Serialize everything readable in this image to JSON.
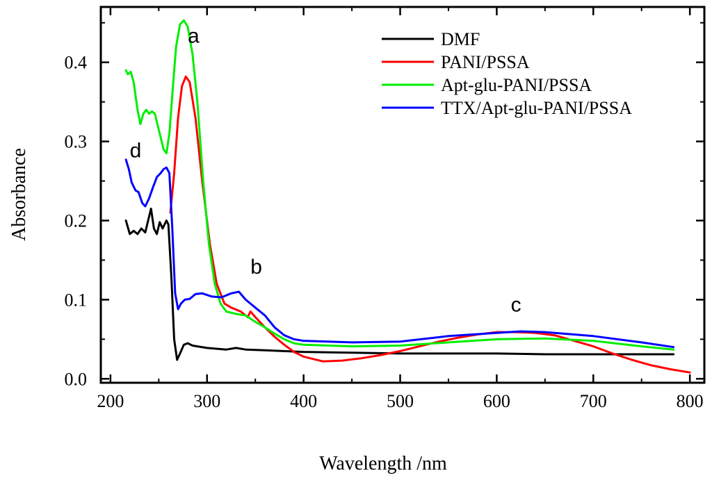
{
  "chart_data": {
    "type": "line",
    "title": "",
    "xlabel": "Wavelength /nm",
    "ylabel": "Absorbance",
    "xlim": [
      190,
      815
    ],
    "ylim": [
      -0.005,
      0.47
    ],
    "xticks": [
      200,
      300,
      400,
      500,
      600,
      700,
      800
    ],
    "yticks": [
      0.0,
      0.1,
      0.2,
      0.3,
      0.4
    ],
    "ytick_labels": [
      "0.0",
      "0.1",
      "0.2",
      "0.3",
      "0.4"
    ],
    "xtick_labels": [
      "200",
      "300",
      "400",
      "500",
      "600",
      "700",
      "800"
    ],
    "grid": false,
    "legend_position": "top-right",
    "series": [
      {
        "name": "DMF",
        "color": "#000000",
        "points": [
          [
            216,
            0.2
          ],
          [
            220,
            0.183
          ],
          [
            224,
            0.187
          ],
          [
            228,
            0.183
          ],
          [
            232,
            0.19
          ],
          [
            236,
            0.185
          ],
          [
            240,
            0.205
          ],
          [
            242,
            0.215
          ],
          [
            245,
            0.19
          ],
          [
            248,
            0.183
          ],
          [
            251,
            0.198
          ],
          [
            254,
            0.19
          ],
          [
            258,
            0.2
          ],
          [
            260,
            0.195
          ],
          [
            263,
            0.13
          ],
          [
            266,
            0.05
          ],
          [
            269,
            0.024
          ],
          [
            272,
            0.032
          ],
          [
            276,
            0.043
          ],
          [
            280,
            0.045
          ],
          [
            285,
            0.042
          ],
          [
            300,
            0.039
          ],
          [
            320,
            0.037
          ],
          [
            330,
            0.039
          ],
          [
            340,
            0.037
          ],
          [
            360,
            0.036
          ],
          [
            400,
            0.034
          ],
          [
            450,
            0.033
          ],
          [
            500,
            0.032
          ],
          [
            550,
            0.032
          ],
          [
            600,
            0.032
          ],
          [
            650,
            0.031
          ],
          [
            700,
            0.031
          ],
          [
            750,
            0.031
          ],
          [
            783,
            0.031
          ]
        ]
      },
      {
        "name": "PANI/PSSA",
        "color": "#ff0000",
        "points": [
          [
            262,
            0.21
          ],
          [
            266,
            0.26
          ],
          [
            270,
            0.33
          ],
          [
            274,
            0.37
          ],
          [
            278,
            0.382
          ],
          [
            282,
            0.375
          ],
          [
            288,
            0.33
          ],
          [
            295,
            0.25
          ],
          [
            303,
            0.17
          ],
          [
            310,
            0.12
          ],
          [
            318,
            0.095
          ],
          [
            325,
            0.09
          ],
          [
            335,
            0.085
          ],
          [
            342,
            0.078
          ],
          [
            345,
            0.085
          ],
          [
            350,
            0.078
          ],
          [
            360,
            0.065
          ],
          [
            370,
            0.053
          ],
          [
            380,
            0.043
          ],
          [
            390,
            0.034
          ],
          [
            400,
            0.028
          ],
          [
            410,
            0.025
          ],
          [
            420,
            0.022
          ],
          [
            440,
            0.023
          ],
          [
            460,
            0.026
          ],
          [
            480,
            0.03
          ],
          [
            500,
            0.035
          ],
          [
            520,
            0.041
          ],
          [
            540,
            0.047
          ],
          [
            560,
            0.052
          ],
          [
            580,
            0.056
          ],
          [
            600,
            0.059
          ],
          [
            620,
            0.059
          ],
          [
            640,
            0.058
          ],
          [
            660,
            0.055
          ],
          [
            680,
            0.048
          ],
          [
            700,
            0.041
          ],
          [
            720,
            0.032
          ],
          [
            740,
            0.024
          ],
          [
            760,
            0.017
          ],
          [
            780,
            0.012
          ],
          [
            800,
            0.008
          ]
        ]
      },
      {
        "name": "Apt-glu-PANI/PSSA",
        "color": "#00ee00",
        "points": [
          [
            216,
            0.39
          ],
          [
            218,
            0.385
          ],
          [
            221,
            0.388
          ],
          [
            224,
            0.375
          ],
          [
            228,
            0.34
          ],
          [
            231,
            0.322
          ],
          [
            234,
            0.335
          ],
          [
            237,
            0.34
          ],
          [
            240,
            0.335
          ],
          [
            243,
            0.338
          ],
          [
            246,
            0.335
          ],
          [
            249,
            0.32
          ],
          [
            252,
            0.305
          ],
          [
            255,
            0.29
          ],
          [
            258,
            0.285
          ],
          [
            261,
            0.31
          ],
          [
            265,
            0.375
          ],
          [
            268,
            0.42
          ],
          [
            272,
            0.448
          ],
          [
            276,
            0.453
          ],
          [
            280,
            0.445
          ],
          [
            285,
            0.41
          ],
          [
            290,
            0.35
          ],
          [
            296,
            0.25
          ],
          [
            302,
            0.17
          ],
          [
            308,
            0.12
          ],
          [
            314,
            0.095
          ],
          [
            320,
            0.085
          ],
          [
            330,
            0.082
          ],
          [
            340,
            0.08
          ],
          [
            350,
            0.072
          ],
          [
            360,
            0.065
          ],
          [
            370,
            0.057
          ],
          [
            380,
            0.05
          ],
          [
            390,
            0.045
          ],
          [
            400,
            0.043
          ],
          [
            450,
            0.041
          ],
          [
            500,
            0.042
          ],
          [
            550,
            0.046
          ],
          [
            600,
            0.05
          ],
          [
            650,
            0.051
          ],
          [
            700,
            0.048
          ],
          [
            750,
            0.041
          ],
          [
            783,
            0.037
          ]
        ]
      },
      {
        "name": "TTX/Apt-glu-PANI/PSSA",
        "color": "#0000ff",
        "points": [
          [
            216,
            0.277
          ],
          [
            219,
            0.265
          ],
          [
            222,
            0.248
          ],
          [
            226,
            0.238
          ],
          [
            229,
            0.236
          ],
          [
            233,
            0.222
          ],
          [
            236,
            0.218
          ],
          [
            240,
            0.228
          ],
          [
            244,
            0.242
          ],
          [
            248,
            0.255
          ],
          [
            252,
            0.26
          ],
          [
            255,
            0.265
          ],
          [
            258,
            0.267
          ],
          [
            261,
            0.26
          ],
          [
            264,
            0.19
          ],
          [
            267,
            0.108
          ],
          [
            270,
            0.088
          ],
          [
            273,
            0.095
          ],
          [
            277,
            0.1
          ],
          [
            282,
            0.101
          ],
          [
            288,
            0.107
          ],
          [
            295,
            0.108
          ],
          [
            305,
            0.104
          ],
          [
            315,
            0.103
          ],
          [
            325,
            0.108
          ],
          [
            333,
            0.11
          ],
          [
            340,
            0.1
          ],
          [
            350,
            0.09
          ],
          [
            360,
            0.08
          ],
          [
            370,
            0.065
          ],
          [
            380,
            0.055
          ],
          [
            390,
            0.05
          ],
          [
            400,
            0.048
          ],
          [
            450,
            0.046
          ],
          [
            500,
            0.047
          ],
          [
            550,
            0.054
          ],
          [
            600,
            0.058
          ],
          [
            625,
            0.06
          ],
          [
            650,
            0.059
          ],
          [
            700,
            0.054
          ],
          [
            750,
            0.046
          ],
          [
            783,
            0.04
          ]
        ]
      }
    ],
    "annotations": [
      {
        "text": "a",
        "x": 286,
        "y": 0.425
      },
      {
        "text": "b",
        "x": 351,
        "y": 0.133
      },
      {
        "text": "c",
        "x": 620,
        "y": 0.085
      },
      {
        "text": "d",
        "x": 226,
        "y": 0.28
      }
    ]
  }
}
